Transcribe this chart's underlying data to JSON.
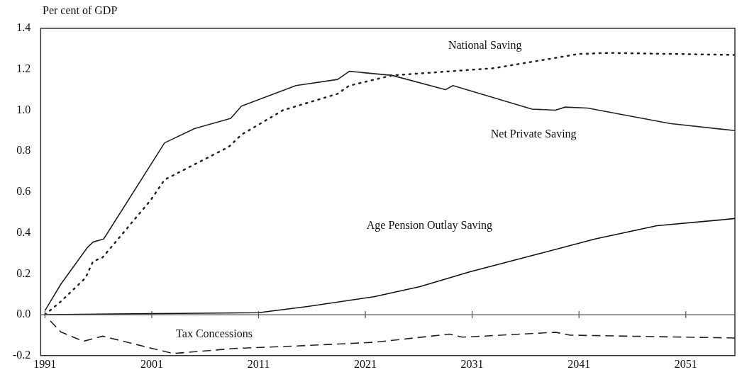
{
  "chart_data": {
    "type": "line",
    "ylabel": "Per cent of GDP",
    "xlim": [
      1990.6,
      2055.6
    ],
    "xticks": [
      1991,
      2001,
      2011,
      2021,
      2031,
      2041,
      2051
    ],
    "ylim": [
      -0.2,
      1.4
    ],
    "yticks": [
      {
        "value": -0.2,
        "label": "-0.2"
      },
      {
        "value": 0,
        "label": "0.0"
      },
      {
        "value": 0.2,
        "label": "0.2"
      },
      {
        "value": 0.4,
        "label": "0.4"
      },
      {
        "value": 0.6,
        "label": "0.6"
      },
      {
        "value": 0.8,
        "label": "0.8"
      },
      {
        "value": 1,
        "label": "1.0"
      },
      {
        "value": 1.2,
        "label": "1.2"
      },
      {
        "value": 1.4,
        "label": "1.4"
      }
    ],
    "grid": false,
    "legend": false,
    "marker": "none",
    "ref_lines": [
      {
        "axis": "y",
        "value": 0,
        "color": "#555555"
      }
    ],
    "series": [
      {
        "name": "Net Private Saving",
        "color": "#222222",
        "line_style": "solid",
        "x": [
          1991,
          1992.5,
          1995,
          1995.5,
          1996.5,
          2002.2,
          2005,
          2008.4,
          2009.4,
          2014.5,
          2018.4,
          2019.5,
          2023.5,
          2028.5,
          2029.2,
          2036.6,
          2038.8,
          2039.7,
          2041.8,
          2049.5,
          2055.6
        ],
        "values": [
          0.02,
          0.15,
          0.33,
          0.355,
          0.37,
          0.84,
          0.91,
          0.96,
          1.02,
          1.12,
          1.15,
          1.19,
          1.17,
          1.1,
          1.12,
          1.005,
          1.0,
          1.015,
          1.01,
          0.935,
          0.9
        ]
      },
      {
        "name": "National Saving",
        "color": "#222222",
        "line_style": "dotted",
        "x": [
          1991,
          1992.5,
          1994.8,
          1995.5,
          1996.4,
          2000.9,
          2002.2,
          2008.2,
          2009.4,
          2013.3,
          2018.4,
          2019.5,
          2023.5,
          2033,
          2041,
          2043.7,
          2055.6
        ],
        "values": [
          0,
          0.065,
          0.18,
          0.26,
          0.28,
          0.56,
          0.66,
          0.82,
          0.88,
          1.0,
          1.08,
          1.12,
          1.17,
          1.205,
          1.275,
          1.28,
          1.27
        ]
      },
      {
        "name": "Age Pension Outlay Saving",
        "color": "#111111",
        "line_style": "solid",
        "x": [
          1991,
          2001,
          2011,
          2015.6,
          2021.8,
          2026.1,
          2030.8,
          2037.4,
          2042.5,
          2048.3,
          2055.6
        ],
        "values": [
          0,
          0.005,
          0.01,
          0.04,
          0.088,
          0.137,
          0.21,
          0.3,
          0.37,
          0.435,
          0.47
        ]
      },
      {
        "name": "Tax Concessions",
        "color": "#222222",
        "line_style": "dashed",
        "x": [
          1991.5,
          1992.5,
          1994.6,
          1996.4,
          2003,
          2008.7,
          2014.5,
          2021.8,
          2028.9,
          2030.1,
          2038.8,
          2040.2,
          2055.6
        ],
        "values": [
          -0.03,
          -0.085,
          -0.13,
          -0.105,
          -0.19,
          -0.165,
          -0.153,
          -0.135,
          -0.095,
          -0.11,
          -0.086,
          -0.1,
          -0.114
        ]
      }
    ]
  }
}
